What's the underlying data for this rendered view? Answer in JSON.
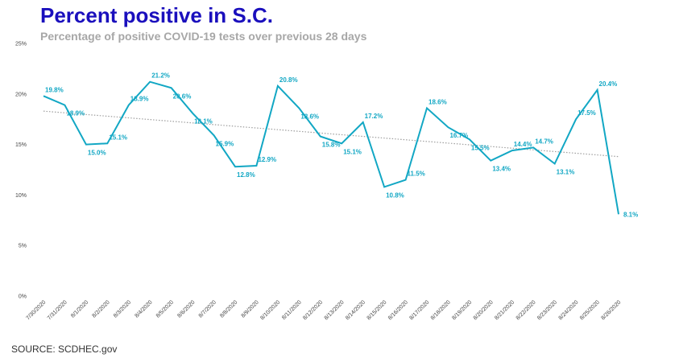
{
  "title": "Percent positive in S.C.",
  "subtitle": "Percentage of positive COVID-19 tests over previous 28 days",
  "source": "SOURCE: SCDHEC.gov",
  "colors": {
    "title": "#1a0fbd",
    "line": "#12a7c4",
    "trendline": "#9e9e9e",
    "subtitle": "#a7a7a7"
  },
  "chart_data": {
    "type": "line",
    "title": "Percent positive in S.C.",
    "subtitle": "Percentage of positive COVID-19 tests over previous 28 days",
    "xlabel": "",
    "ylabel": "",
    "ylim": [
      0,
      25
    ],
    "y_ticks": [
      "0%",
      "5%",
      "10%",
      "15%",
      "20%",
      "25%"
    ],
    "y_tick_values": [
      0,
      5,
      10,
      15,
      20,
      25
    ],
    "grid": false,
    "legend": "none",
    "trendline": {
      "style": "dotted",
      "start": 18.3,
      "end": 13.8
    },
    "categories": [
      "7/30/2020",
      "7/31/2020",
      "8/1/2020",
      "8/2/2020",
      "8/3/2020",
      "8/4/2020",
      "8/5/2020",
      "8/6/2020",
      "8/7/2020",
      "8/8/2020",
      "8/9/2020",
      "8/10/2020",
      "8/11/2020",
      "8/12/2020",
      "8/13/2020",
      "8/14/2020",
      "8/15/2020",
      "8/16/2020",
      "8/17/2020",
      "8/18/2020",
      "8/19/2020",
      "8/20/2020",
      "8/21/2020",
      "8/22/2020",
      "8/23/2020",
      "8/24/2020",
      "8/25/2020",
      "8/26/2020"
    ],
    "series": [
      {
        "values": [
          19.8,
          18.9,
          15.0,
          15.1,
          18.9,
          21.2,
          20.6,
          18.1,
          15.9,
          12.8,
          12.9,
          20.8,
          18.6,
          15.8,
          15.1,
          17.2,
          10.8,
          11.5,
          18.6,
          16.7,
          15.5,
          13.4,
          14.4,
          14.7,
          13.1,
          17.5,
          20.4,
          8.1
        ],
        "labels": [
          "19.8%",
          "18.9%",
          "15.0%",
          "15.1%",
          "18.9%",
          "21.2%",
          "20.6%",
          "18.1%",
          "15.9%",
          "12.8%",
          "12.9%",
          "20.8%",
          "18.6%",
          "15.8%",
          "15.1%",
          "17.2%",
          "10.8%",
          "11.5%",
          "18.6%",
          "16.7%",
          "15.5%",
          "13.4%",
          "14.4%",
          "14.7%",
          "13.1%",
          "17.5%",
          "20.4%",
          "8.1%"
        ],
        "labeled": [
          true,
          true,
          true,
          true,
          true,
          true,
          true,
          true,
          true,
          true,
          true,
          true,
          true,
          true,
          true,
          true,
          true,
          true,
          true,
          true,
          true,
          true,
          true,
          true,
          true,
          true,
          true,
          true
        ]
      }
    ]
  }
}
